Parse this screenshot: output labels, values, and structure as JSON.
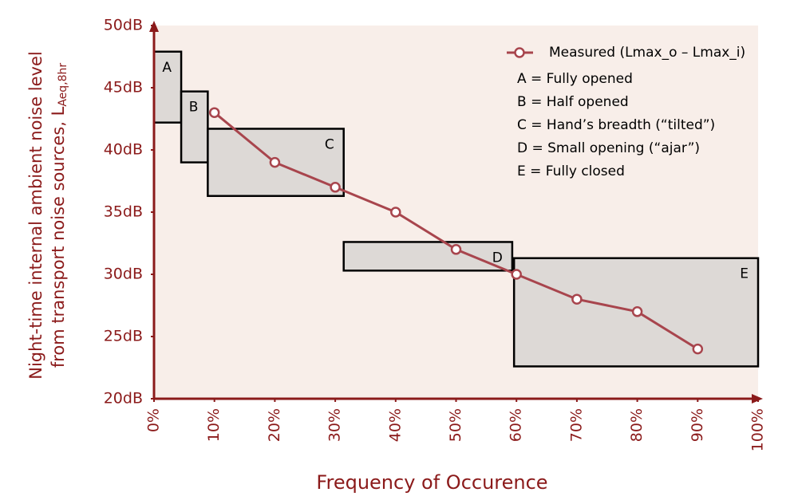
{
  "chart_data": {
    "type": "line",
    "xlabel": "Frequency of Occurence",
    "ylabel": [
      "Night-time internal ambient noise level",
      "from transport noise sources, L"
    ],
    "ylabel_subscript": "Aeq,8hr",
    "xlim": [
      0,
      100
    ],
    "xticks": [
      {
        "value": 0,
        "label": "0%"
      },
      {
        "value": 10,
        "label": "10%"
      },
      {
        "value": 20,
        "label": "20%"
      },
      {
        "value": 30,
        "label": "30%"
      },
      {
        "value": 40,
        "label": "40%"
      },
      {
        "value": 50,
        "label": "50%"
      },
      {
        "value": 60,
        "label": "60%"
      },
      {
        "value": 70,
        "label": "70%"
      },
      {
        "value": 80,
        "label": "80%"
      },
      {
        "value": 90,
        "label": "90%"
      },
      {
        "value": 100,
        "label": "100%"
      }
    ],
    "ylim": [
      20,
      50
    ],
    "yticks": [
      {
        "value": 20,
        "label": "20dB"
      },
      {
        "value": 25,
        "label": "25dB"
      },
      {
        "value": 30,
        "label": "30dB"
      },
      {
        "value": 35,
        "label": "35dB"
      },
      {
        "value": 40,
        "label": "40dB"
      },
      {
        "value": 45,
        "label": "45dB"
      },
      {
        "value": 50,
        "label": "50dB"
      }
    ],
    "axis_color": "#8b1a1a",
    "background": "#f8eee9",
    "x": [
      10,
      20,
      30,
      40,
      50,
      60,
      70,
      80,
      90
    ],
    "series": [
      {
        "name": "Measured (Lmax_o – Lmax_i)",
        "color": "#a8454d",
        "values": [
          43,
          39,
          37,
          35,
          32,
          30,
          28,
          27,
          24
        ]
      }
    ],
    "legend": "top-right",
    "ranges": [
      {
        "label": "A",
        "x": [
          0,
          4.5
        ],
        "y": [
          42.2,
          47.9
        ]
      },
      {
        "label": "B",
        "x": [
          4.5,
          8.9
        ],
        "y": [
          39.0,
          44.7
        ]
      },
      {
        "label": "C",
        "x": [
          8.9,
          31.4
        ],
        "y": [
          36.3,
          41.7
        ]
      },
      {
        "label": "D",
        "x": [
          31.4,
          59.3
        ],
        "y": [
          30.3,
          32.6
        ]
      },
      {
        "label": "E",
        "x": [
          59.6,
          100
        ],
        "y": [
          22.6,
          31.3
        ]
      }
    ],
    "range_color": "#d9d6d4",
    "notes": [
      "A = Fully opened",
      "B = Half opened",
      "C = Hand’s breadth (“tilted”)",
      "D = Small opening (“ajar”)",
      "E = Fully closed"
    ]
  }
}
